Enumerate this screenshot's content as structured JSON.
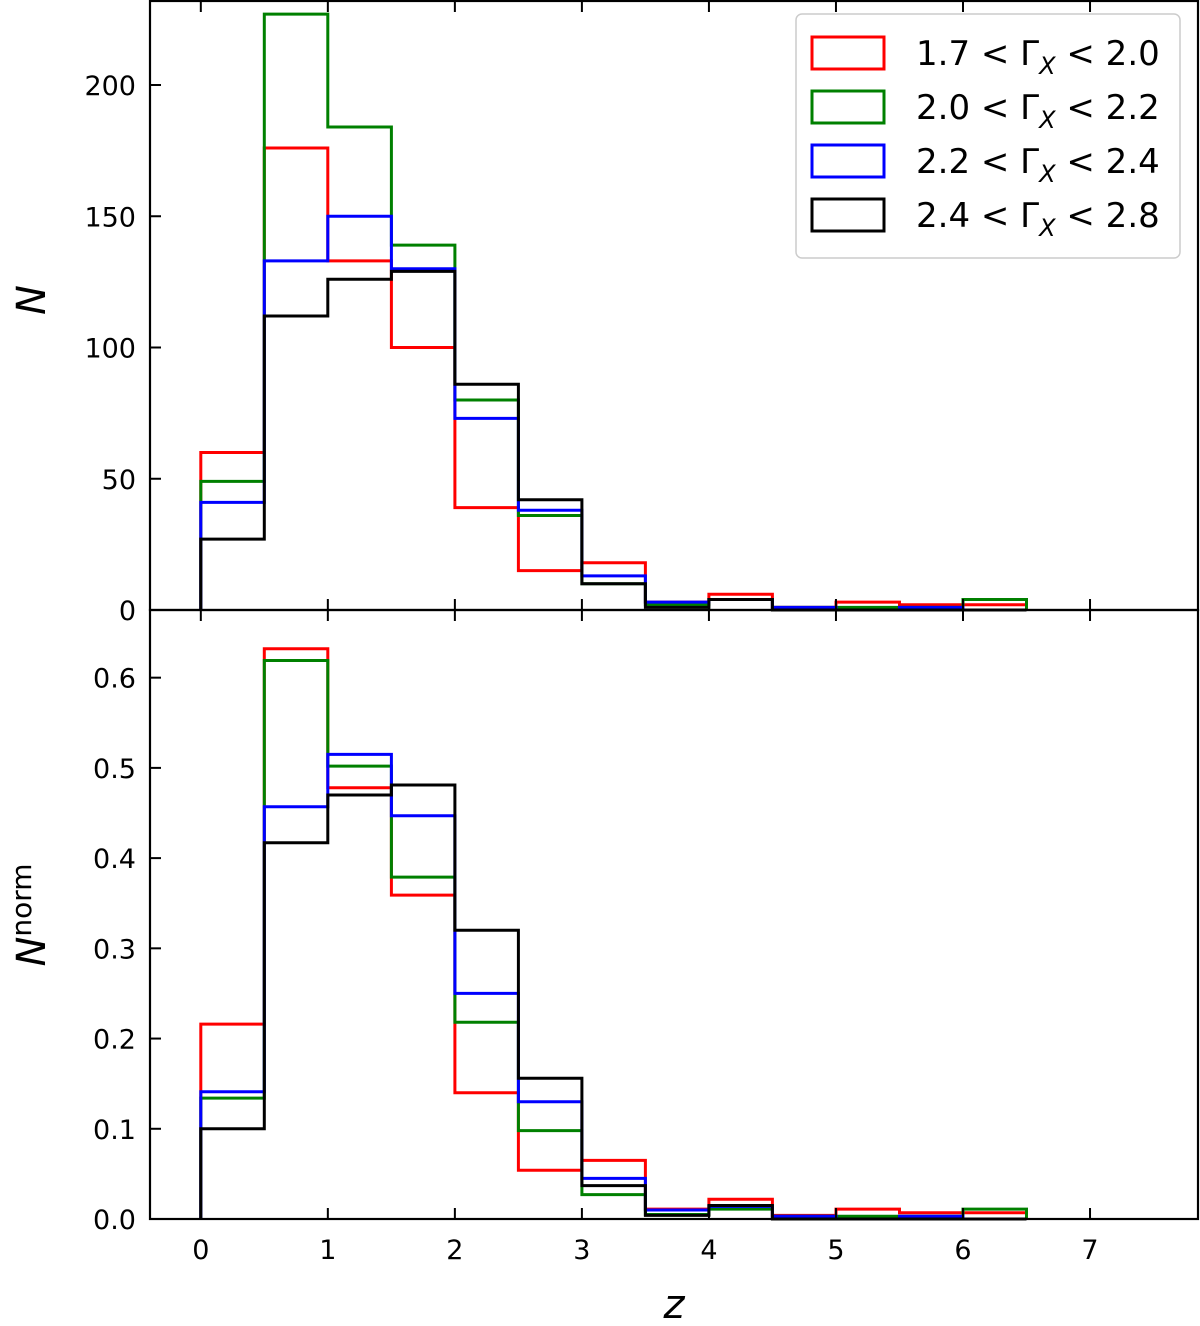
{
  "chart_data": {
    "type": "histogram-step",
    "xlabel": "z",
    "bin_edges": [
      0,
      0.5,
      1,
      1.5,
      2,
      2.5,
      3,
      3.5,
      4,
      4.5,
      5,
      5.5,
      6,
      6.5
    ],
    "xlim": [
      -0.4,
      7.85
    ],
    "xticks": [
      0,
      1,
      2,
      3,
      4,
      5,
      6,
      7
    ],
    "xtick_labels": [
      "0",
      "1",
      "2",
      "3",
      "4",
      "5",
      "6",
      "7"
    ],
    "legend": {
      "location": "top-right",
      "entries": [
        {
          "prefix": "1.7 < Γ",
          "sub": "X",
          "suffix": " < 2.0",
          "color": "#ff0000"
        },
        {
          "prefix": "2.0 < Γ",
          "sub": "X",
          "suffix": " < 2.2",
          "color": "#008000"
        },
        {
          "prefix": "2.2 < Γ",
          "sub": "X",
          "suffix": " < 2.4",
          "color": "#0000ff"
        },
        {
          "prefix": "2.4 < Γ",
          "sub": "X",
          "suffix": " < 2.8",
          "color": "#000000"
        }
      ]
    },
    "panels": [
      {
        "id": "counts",
        "ylabel": "N",
        "ylim": [
          0,
          232
        ],
        "yticks": [
          0,
          50,
          100,
          150,
          200
        ],
        "ytick_labels": [
          "0",
          "50",
          "100",
          "150",
          "200"
        ],
        "series": [
          {
            "name": "1.7 < ΓX < 2.0",
            "color": "#ff0000",
            "values": [
              60,
              176,
              133,
              100,
              39,
              15,
              18,
              3,
              6,
              1,
              3,
              2,
              2
            ]
          },
          {
            "name": "2.0 < ΓX < 2.2",
            "color": "#008000",
            "values": [
              49,
              227,
              184,
              139,
              80,
              36,
              10,
              2,
              4,
              1,
              1,
              1,
              4
            ]
          },
          {
            "name": "2.2 < ΓX < 2.4",
            "color": "#0000ff",
            "values": [
              41,
              133,
              150,
              130,
              73,
              38,
              13,
              3,
              4,
              1,
              0,
              1,
              0
            ]
          },
          {
            "name": "2.4 < ΓX < 2.8",
            "color": "#000000",
            "values": [
              27,
              112,
              126,
              129,
              86,
              42,
              10,
              1,
              4,
              0,
              0,
              0,
              0
            ]
          }
        ]
      },
      {
        "id": "normalized",
        "ylabel": "N",
        "ylabel_sup": "norm",
        "ylim": [
          0,
          0.675
        ],
        "yticks": [
          0,
          0.1,
          0.2,
          0.3,
          0.4,
          0.5,
          0.6
        ],
        "ytick_labels": [
          "0.0",
          "0.1",
          "0.2",
          "0.3",
          "0.4",
          "0.5",
          "0.6"
        ],
        "series": [
          {
            "name": "1.7 < ΓX < 2.0",
            "color": "#ff0000",
            "values": [
              0.216,
              0.632,
              0.478,
              0.359,
              0.14,
              0.054,
              0.065,
              0.011,
              0.022,
              0.004,
              0.011,
              0.007,
              0.007
            ]
          },
          {
            "name": "2.0 < ΓX < 2.2",
            "color": "#008000",
            "values": [
              0.134,
              0.619,
              0.502,
              0.379,
              0.218,
              0.098,
              0.027,
              0.005,
              0.011,
              0.003,
              0.003,
              0.003,
              0.011
            ]
          },
          {
            "name": "2.2 < ΓX < 2.4",
            "color": "#0000ff",
            "values": [
              0.141,
              0.457,
              0.515,
              0.447,
              0.25,
              0.13,
              0.045,
              0.01,
              0.014,
              0.003,
              0.0,
              0.003,
              0.0
            ]
          },
          {
            "name": "2.4 < ΓX < 2.8",
            "color": "#000000",
            "values": [
              0.1,
              0.417,
              0.47,
              0.481,
              0.32,
              0.156,
              0.037,
              0.004,
              0.015,
              0.0,
              0.0,
              0.0,
              0.0
            ]
          }
        ]
      }
    ]
  }
}
